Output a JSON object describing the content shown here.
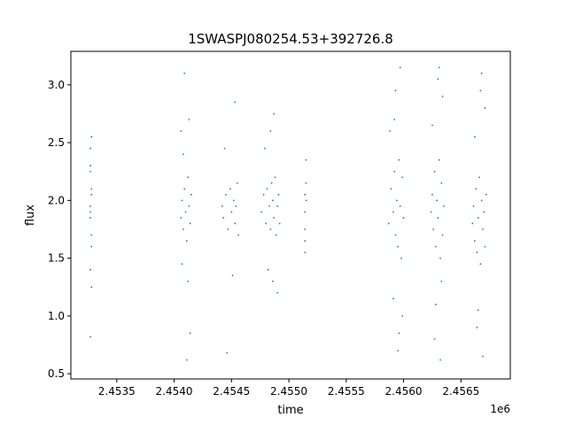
{
  "chart_data": {
    "type": "scatter",
    "title": "1SWASPJ080254.53+392726.8",
    "xlabel": "time",
    "ylabel": "flux",
    "x_offset_label": "1e6",
    "x_scale": 1000000,
    "xlim": [
      2.4531,
      2.45693
    ],
    "ylim": [
      0.455,
      3.29
    ],
    "x_ticks": [
      {
        "value": 2.4535,
        "label": "2.4535"
      },
      {
        "value": 2.454,
        "label": "2.4540"
      },
      {
        "value": 2.4545,
        "label": "2.4545"
      },
      {
        "value": 2.455,
        "label": "2.4550"
      },
      {
        "value": 2.4555,
        "label": "2.4555"
      },
      {
        "value": 2.456,
        "label": "2.4560"
      },
      {
        "value": 2.4565,
        "label": "2.4565"
      }
    ],
    "y_ticks": [
      {
        "value": 0.5,
        "label": "0.5"
      },
      {
        "value": 1.0,
        "label": "1.0"
      },
      {
        "value": 1.5,
        "label": "1.5"
      },
      {
        "value": 2.0,
        "label": "2.0"
      },
      {
        "value": 2.5,
        "label": "2.5"
      },
      {
        "value": 3.0,
        "label": "3.0"
      }
    ],
    "grid": false,
    "legend": "none",
    "point_color": "#1f77b4",
    "series": [
      {
        "x": [
          2.45327,
          2.45327,
          2.45328,
          2.45327,
          2.45328,
          2.45327,
          2.45328,
          2.45327,
          2.45328,
          2.45327,
          2.45328,
          2.45327,
          2.45327,
          2.45328,
          2.45406,
          2.45407,
          2.45408,
          2.45409,
          2.4541,
          2.45411,
          2.45412,
          2.45413,
          2.45414,
          2.45415,
          2.45406,
          2.45409,
          2.45412,
          2.45414,
          2.45408,
          2.45411,
          2.45413,
          2.45407,
          2.45442,
          2.45443,
          2.45445,
          2.45447,
          2.45449,
          2.4545,
          2.45452,
          2.45453,
          2.45454,
          2.45455,
          2.45456,
          2.45444,
          2.45451,
          2.45453,
          2.45446,
          2.45476,
          2.45478,
          2.4548,
          2.45481,
          2.45483,
          2.45484,
          2.45485,
          2.45486,
          2.45487,
          2.45488,
          2.45489,
          2.4549,
          2.45491,
          2.45492,
          2.45479,
          2.45482,
          2.45487,
          2.4549,
          2.45484,
          2.45486,
          2.45514,
          2.45514,
          2.45514,
          2.45515,
          2.45514,
          2.45515,
          2.45514,
          2.45515,
          2.45587,
          2.45589,
          2.45591,
          2.45592,
          2.45593,
          2.45594,
          2.45595,
          2.45596,
          2.45597,
          2.45598,
          2.45599,
          2.456,
          2.45588,
          2.45591,
          2.45593,
          2.45595,
          2.45597,
          2.45599,
          2.45592,
          2.45596,
          2.45624,
          2.45625,
          2.45626,
          2.45627,
          2.45628,
          2.45629,
          2.4563,
          2.45631,
          2.45632,
          2.45633,
          2.45634,
          2.45635,
          2.45625,
          2.45628,
          2.4563,
          2.45632,
          2.45634,
          2.45627,
          2.45631,
          2.45633,
          2.4566,
          2.45661,
          2.45662,
          2.45663,
          2.45664,
          2.45665,
          2.45666,
          2.45667,
          2.45668,
          2.45669,
          2.4567,
          2.45671,
          2.45672,
          2.45662,
          2.45665,
          2.45667,
          2.45669,
          2.45671,
          2.45664,
          2.45668
        ],
        "y": [
          1.95,
          2.25,
          2.05,
          1.85,
          1.7,
          2.3,
          1.6,
          2.45,
          1.25,
          0.82,
          2.1,
          1.9,
          1.4,
          2.55,
          1.85,
          2.0,
          1.75,
          2.1,
          1.9,
          1.65,
          2.2,
          1.95,
          1.8,
          2.05,
          2.6,
          3.1,
          1.3,
          0.85,
          2.4,
          0.62,
          2.7,
          1.45,
          1.95,
          1.85,
          2.05,
          1.75,
          2.1,
          1.9,
          2.0,
          1.8,
          1.95,
          2.15,
          1.7,
          2.45,
          1.35,
          2.85,
          0.68,
          1.9,
          2.05,
          1.8,
          2.1,
          1.95,
          1.75,
          2.15,
          2.0,
          1.85,
          2.2,
          1.7,
          1.95,
          2.05,
          1.8,
          2.45,
          1.4,
          2.75,
          1.2,
          2.6,
          1.3,
          1.9,
          2.05,
          1.75,
          2.15,
          1.65,
          2.35,
          1.55,
          2.0,
          1.8,
          2.1,
          1.9,
          2.25,
          1.7,
          2.0,
          1.6,
          2.35,
          1.95,
          1.5,
          2.2,
          1.85,
          2.6,
          1.15,
          2.95,
          0.7,
          3.15,
          1.0,
          2.7,
          0.85,
          1.9,
          2.05,
          1.75,
          2.25,
          1.6,
          2.0,
          1.85,
          2.35,
          1.5,
          2.15,
          1.7,
          1.95,
          2.65,
          1.1,
          3.05,
          0.62,
          2.9,
          0.8,
          3.15,
          1.3,
          1.8,
          1.95,
          1.65,
          2.1,
          1.55,
          1.85,
          2.2,
          1.45,
          2.0,
          1.75,
          1.9,
          1.6,
          2.05,
          2.55,
          1.05,
          2.95,
          0.65,
          2.8,
          0.9,
          3.1
        ]
      }
    ]
  }
}
